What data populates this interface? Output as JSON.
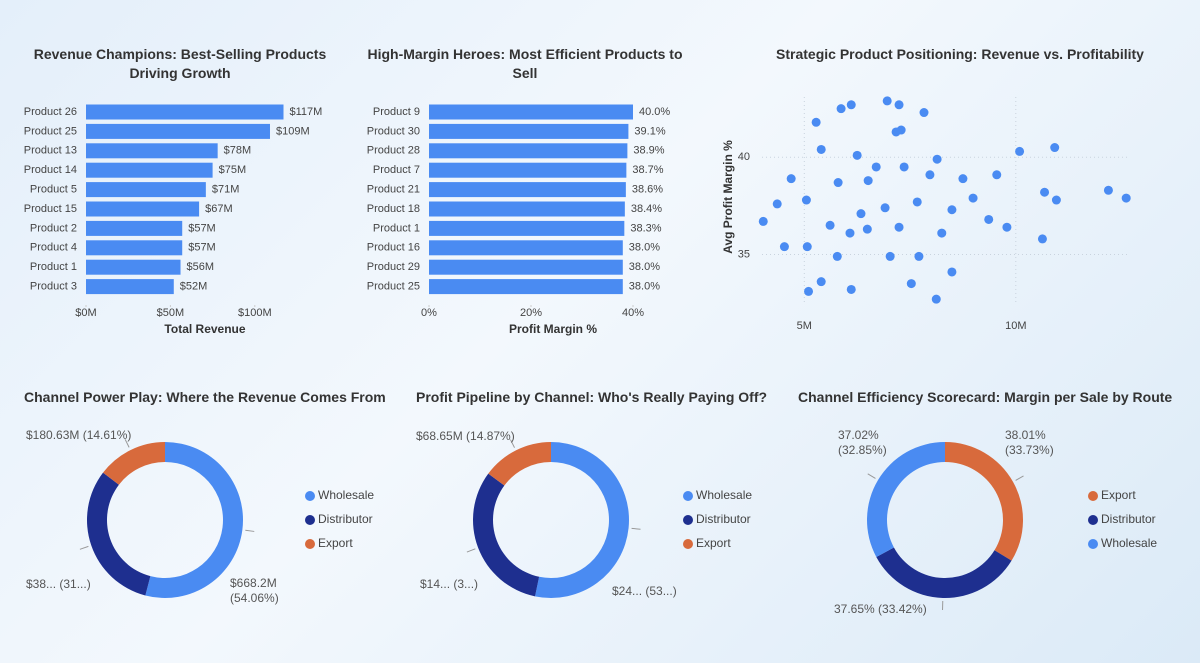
{
  "chart_data": [
    {
      "type": "hbar",
      "title": "Revenue Champions: Best-Selling Products Driving Growth",
      "xlabel": "Total Revenue",
      "color": "#4a8bf2",
      "categories": [
        "Product 26",
        "Product 25",
        "Product 13",
        "Product 14",
        "Product 5",
        "Product 15",
        "Product 2",
        "Product 4",
        "Product 1",
        "Product 3"
      ],
      "values": [
        117000000,
        109000000,
        78000000,
        75000000,
        71000000,
        67000000,
        57000000,
        57000000,
        56000000,
        52000000
      ],
      "value_labels": [
        "$117M",
        "$109M",
        "$78M",
        "$75M",
        "$71M",
        "$67M",
        "$57M",
        "$57M",
        "$56M",
        "$52M"
      ],
      "xlim": [
        0,
        125000000
      ],
      "xticks": [
        {
          "value": 0,
          "label": "$0M"
        },
        {
          "value": 50000000,
          "label": "$50M"
        },
        {
          "value": 100000000,
          "label": "$100M"
        }
      ]
    },
    {
      "type": "hbar",
      "title": "High-Margin Heroes: Most Efficient Products to Sell",
      "xlabel": "Profit Margin %",
      "color": "#4a8bf2",
      "categories": [
        "Product 9",
        "Product 30",
        "Product 28",
        "Product 7",
        "Product 21",
        "Product 18",
        "Product 1",
        "Product 16",
        "Product 29",
        "Product 25"
      ],
      "values": [
        40.0,
        39.1,
        38.9,
        38.7,
        38.6,
        38.4,
        38.3,
        38.0,
        38.0,
        38.0
      ],
      "value_labels": [
        "40.0%",
        "39.1%",
        "38.9%",
        "38.7%",
        "38.6%",
        "38.4%",
        "38.3%",
        "38.0%",
        "38.0%",
        "38.0%"
      ],
      "xlim": [
        0,
        40
      ],
      "xticks": [
        {
          "value": 0,
          "label": "0%"
        },
        {
          "value": 20,
          "label": "20%"
        },
        {
          "value": 40,
          "label": "40%"
        }
      ]
    },
    {
      "type": "scatter",
      "title": "Strategic Product Positioning: Revenue vs. Profitability",
      "ylabel": "Avg Profit Margin %",
      "color": "#4a8bf2",
      "grid": true,
      "x": [
        6960000,
        6110000,
        7240000,
        7830000,
        5870000,
        7290000,
        5280000,
        7170000,
        10920000,
        10090000,
        5400000,
        6250000,
        8140000,
        6700000,
        7360000,
        7970000,
        4690000,
        5800000,
        6510000,
        8750000,
        9550000,
        12190000,
        12610000,
        10680000,
        10960000,
        4360000,
        5050000,
        6340000,
        6910000,
        7670000,
        8490000,
        8990000,
        9360000,
        9790000,
        5610000,
        6080000,
        6490000,
        7240000,
        8250000,
        10630000,
        4530000,
        5070000,
        5780000,
        7030000,
        7710000,
        8490000,
        5400000,
        6110000,
        7530000,
        8120000,
        5100000,
        4030000
      ],
      "y": [
        42.9,
        42.7,
        42.7,
        42.3,
        42.5,
        41.4,
        41.8,
        41.3,
        40.5,
        40.3,
        40.4,
        40.1,
        39.9,
        39.5,
        39.5,
        39.1,
        38.9,
        38.7,
        38.8,
        38.9,
        39.1,
        38.3,
        37.9,
        38.2,
        37.8,
        37.6,
        37.8,
        37.1,
        37.4,
        37.7,
        37.3,
        37.9,
        36.8,
        36.4,
        36.5,
        36.1,
        36.3,
        36.4,
        36.1,
        35.8,
        35.4,
        35.4,
        34.9,
        34.9,
        34.9,
        34.1,
        33.6,
        33.2,
        33.5,
        32.7,
        33.1,
        36.7
      ],
      "xlim": [
        4000000,
        12700000
      ],
      "ylim": [
        32.4,
        43.1
      ],
      "xticks": [
        {
          "value": 5000000,
          "label": "5M"
        },
        {
          "value": 10000000,
          "label": "10M"
        }
      ],
      "yticks": [
        35,
        40
      ]
    },
    {
      "type": "donut",
      "title": "Channel Power Play: Where the Revenue Comes From",
      "categories": [
        "Wholesale",
        "Distributor",
        "Export"
      ],
      "colors": [
        "#4a8bf2",
        "#1e2f8f",
        "#d86a3c"
      ],
      "values": [
        668200000,
        387300000,
        180630000
      ],
      "value_labels": [
        "$668.2M (54.06%)",
        "$38... (31...)",
        "$180.63M (14.61%)"
      ]
    },
    {
      "type": "donut",
      "title": "Profit Pipeline by Channel: Who's Really Paying Off?",
      "categories": [
        "Wholesale",
        "Distributor",
        "Export"
      ],
      "colors": [
        "#4a8bf2",
        "#1e2f8f",
        "#d86a3c"
      ],
      "values": [
        246000000,
        147000000,
        68650000
      ],
      "value_labels": [
        "$24... (53...)",
        "$14... (3...)",
        "$68.65M (14.87%)"
      ]
    },
    {
      "type": "donut",
      "title": "Channel Efficiency Scorecard: Margin per Sale by Route",
      "categories": [
        "Export",
        "Distributor",
        "Wholesale"
      ],
      "colors": [
        "#d86a3c",
        "#1e2f8f",
        "#4a8bf2"
      ],
      "values": [
        38.01,
        37.65,
        37.02
      ],
      "value_labels": [
        "38.01% (33.73%)",
        "37.65% (33.42%)",
        "37.02% (32.85%)"
      ]
    }
  ]
}
